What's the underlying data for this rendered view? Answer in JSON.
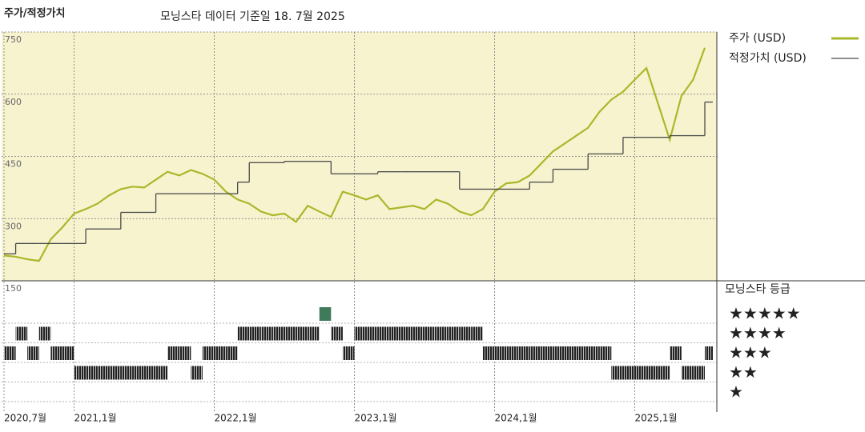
{
  "title": "주가/적정가치",
  "subtitle": "모닝스타 데이터 기준일 18. 7월 2025",
  "chart_data": {
    "type": "line",
    "x": [
      "2020-07",
      "2020-08",
      "2020-09",
      "2020-10",
      "2020-11",
      "2020-12",
      "2021-01",
      "2021-02",
      "2021-03",
      "2021-04",
      "2021-05",
      "2021-06",
      "2021-07",
      "2021-08",
      "2021-09",
      "2021-10",
      "2021-11",
      "2021-12",
      "2022-01",
      "2022-02",
      "2022-03",
      "2022-04",
      "2022-05",
      "2022-06",
      "2022-07",
      "2022-08",
      "2022-09",
      "2022-10",
      "2022-11",
      "2022-12",
      "2023-01",
      "2023-02",
      "2023-03",
      "2023-04",
      "2023-05",
      "2023-06",
      "2023-07",
      "2023-08",
      "2023-09",
      "2023-10",
      "2023-11",
      "2023-12",
      "2024-01",
      "2024-02",
      "2024-03",
      "2024-04",
      "2024-05",
      "2024-06",
      "2024-07",
      "2024-08",
      "2024-09",
      "2024-10",
      "2024-11",
      "2024-12",
      "2025-01",
      "2025-02",
      "2025-03",
      "2025-04",
      "2025-05",
      "2025-06",
      "2025-07"
    ],
    "series": [
      {
        "name": "주가 (USD)",
        "color": "#a9b82b",
        "values": [
          211,
          208,
          202,
          198,
          250,
          279,
          312,
          323,
          336,
          356,
          371,
          377,
          375,
          394,
          413,
          404,
          417,
          408,
          394,
          365,
          346,
          336,
          317,
          308,
          312,
          292,
          331,
          317,
          304,
          365,
          356,
          346,
          356,
          323,
          327,
          331,
          323,
          346,
          336,
          317,
          308,
          323,
          365,
          385,
          388,
          404,
          433,
          462,
          481,
          500,
          519,
          558,
          587,
          606,
          635,
          663,
          577,
          490,
          596,
          635,
          712
        ]
      },
      {
        "name": "적정가치 (USD)",
        "color": "#4a4a4a",
        "values": [
          215,
          240,
          240,
          240,
          240,
          240,
          240,
          275,
          275,
          275,
          315,
          315,
          315,
          360,
          360,
          360,
          360,
          360,
          360,
          360,
          388,
          435,
          435,
          435,
          438,
          438,
          438,
          438,
          408,
          408,
          408,
          408,
          413,
          413,
          413,
          413,
          413,
          413,
          413,
          371,
          371,
          371,
          371,
          371,
          371,
          388,
          388,
          419,
          419,
          419,
          456,
          456,
          456,
          496,
          496,
          496,
          496,
          500,
          500,
          500,
          581
        ]
      }
    ],
    "ylim": [
      150,
      750
    ],
    "yticks": [
      150,
      300,
      450,
      600,
      750
    ],
    "xticks": [
      {
        "value": "2020-07",
        "label": "2020,7월"
      },
      {
        "value": "2021-01",
        "label": "2021,1월"
      },
      {
        "value": "2022-01",
        "label": "2022,1월"
      },
      {
        "value": "2023-01",
        "label": "2023,1월"
      },
      {
        "value": "2024-01",
        "label": "2024,1월"
      },
      {
        "value": "2025-01",
        "label": "2025,1월"
      }
    ],
    "grid": true,
    "plot_background": "#f7f3cf",
    "rating_title": "모닝스타 등급",
    "rating_levels": [
      5,
      4,
      3,
      2,
      1
    ],
    "rating_labels": [
      "★★★★★",
      "★★★★",
      "★★★",
      "★★",
      "★"
    ],
    "rating_color": "#333333",
    "top_rating_color": "#3f7a5a",
    "ratings": [
      3,
      4,
      3,
      4,
      3,
      3,
      2,
      2,
      2,
      2,
      2,
      2,
      2,
      2,
      3,
      3,
      2,
      3,
      3,
      3,
      4,
      4,
      4,
      4,
      4,
      4,
      4,
      5,
      4,
      3,
      4,
      4,
      4,
      4,
      4,
      4,
      4,
      4,
      4,
      4,
      4,
      3,
      3,
      3,
      3,
      3,
      3,
      3,
      3,
      3,
      3,
      3,
      2,
      2,
      2,
      2,
      2,
      3,
      2,
      2,
      3
    ]
  }
}
